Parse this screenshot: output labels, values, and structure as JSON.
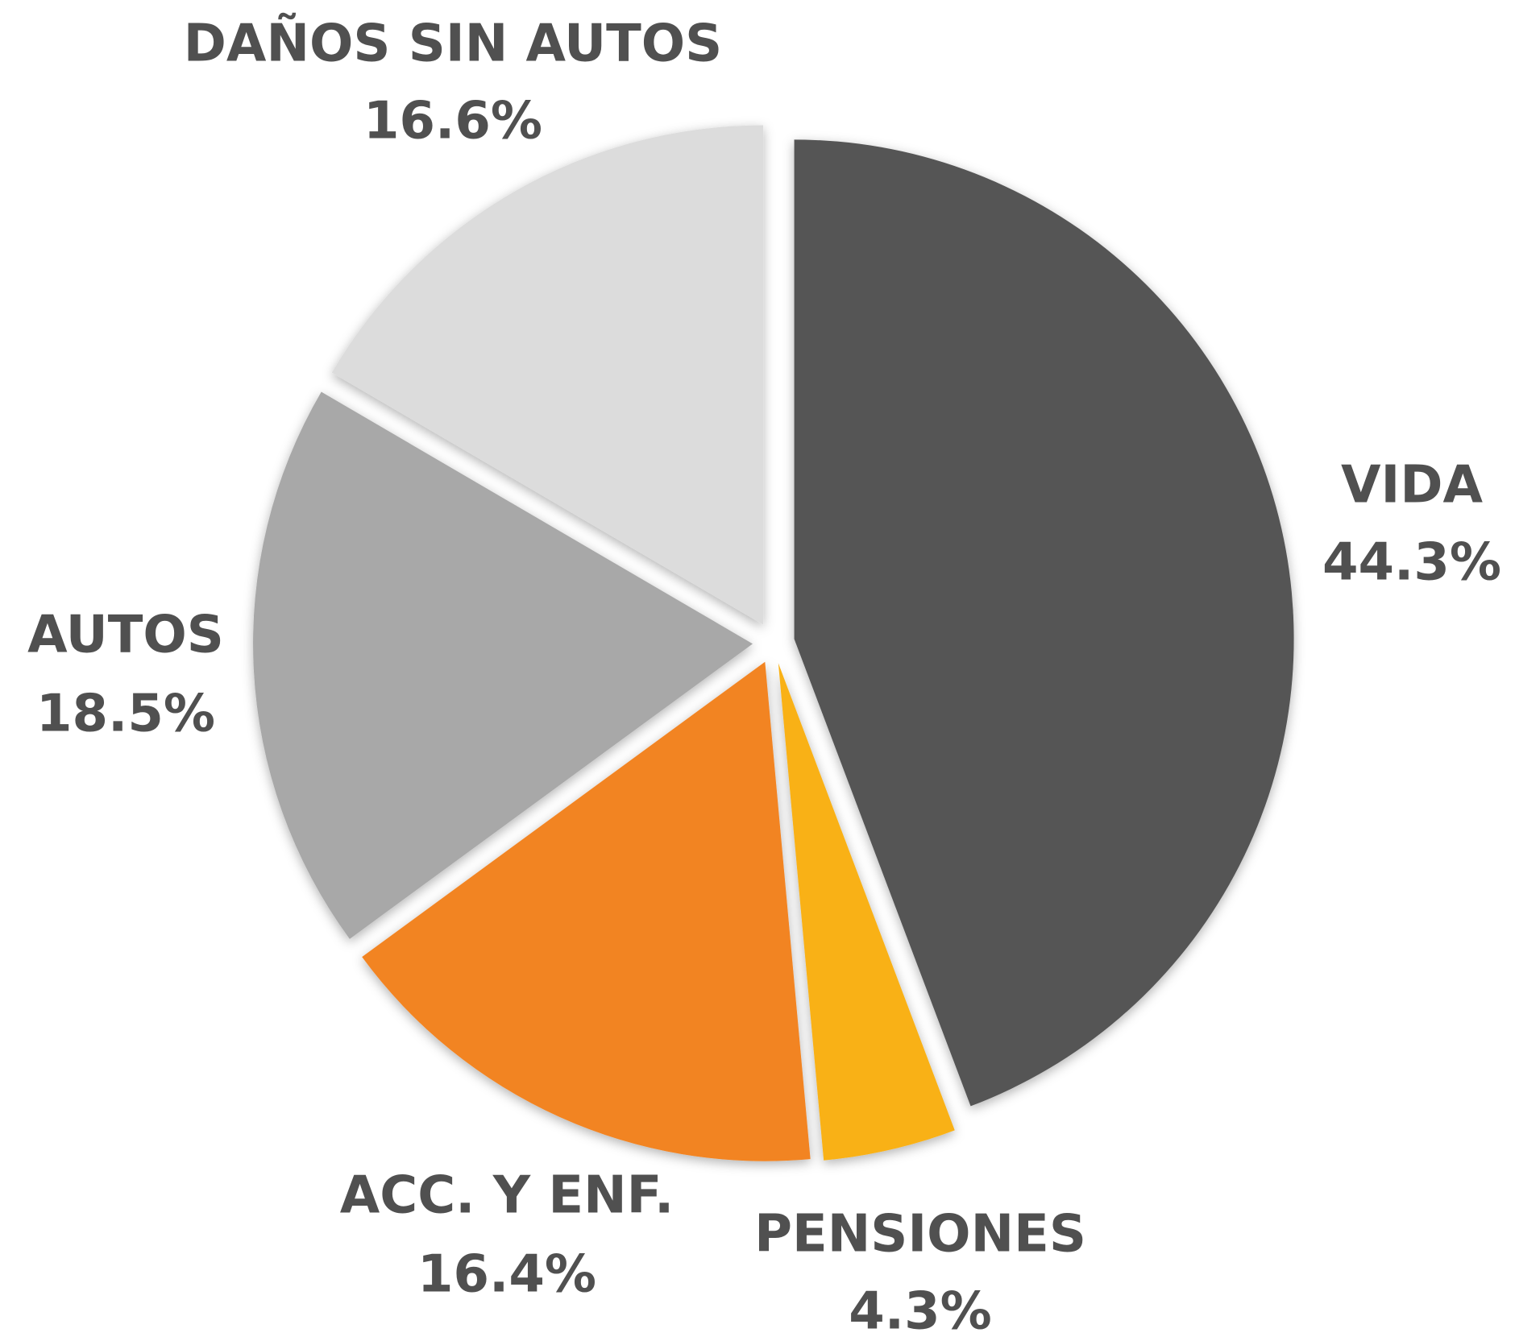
{
  "chart_data": {
    "type": "pie",
    "categories": [
      "VIDA",
      "PENSIONES",
      "ACC. Y ENF.",
      "AUTOS",
      "DAÑOS SIN AUTOS"
    ],
    "values": [
      44.3,
      4.3,
      16.4,
      18.5,
      16.6
    ],
    "value_labels": [
      "44.3%",
      "4.3%",
      "16.4%",
      "18.5%",
      "16.6%"
    ],
    "colors": [
      "#545454",
      "#f9b115",
      "#f28424",
      "#a8a8a8",
      "#dcdcdc"
    ]
  }
}
